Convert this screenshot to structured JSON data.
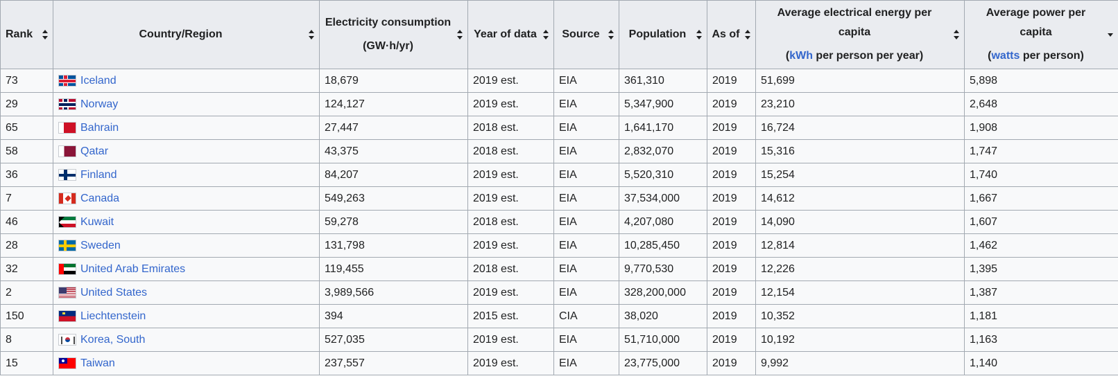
{
  "headers": {
    "rank": "Rank",
    "country": "Country/Region",
    "consumption_line1": "Electricity consumption",
    "consumption_unit": "(GW·h/yr)",
    "year": "Year of data",
    "source": "Source",
    "population": "Population",
    "as_of": "As of",
    "energy_title": "Average electrical energy per capita",
    "energy_unit_pre": "(",
    "energy_unit_link": "kWh",
    "energy_unit_post": " per person per year)",
    "power_title": "Average power per capita",
    "power_unit_pre": "(",
    "power_unit_link": "watts",
    "power_unit_post": " per person)"
  },
  "rows": [
    {
      "rank": "73",
      "country": "Iceland",
      "flag": "iceland",
      "consumption": "18,679",
      "year": "2019 est.",
      "source": "EIA",
      "population": "361,310",
      "as_of": "2019",
      "energy": "51,699",
      "power": "5,898"
    },
    {
      "rank": "29",
      "country": "Norway",
      "flag": "norway",
      "consumption": "124,127",
      "year": "2019 est.",
      "source": "EIA",
      "population": "5,347,900",
      "as_of": "2019",
      "energy": "23,210",
      "power": "2,648"
    },
    {
      "rank": "65",
      "country": "Bahrain",
      "flag": "bahrain",
      "consumption": "27,447",
      "year": "2018 est.",
      "source": "EIA",
      "population": "1,641,170",
      "as_of": "2019",
      "energy": "16,724",
      "power": "1,908"
    },
    {
      "rank": "58",
      "country": "Qatar",
      "flag": "qatar",
      "consumption": "43,375",
      "year": "2018 est.",
      "source": "EIA",
      "population": "2,832,070",
      "as_of": "2019",
      "energy": "15,316",
      "power": "1,747"
    },
    {
      "rank": "36",
      "country": "Finland",
      "flag": "finland",
      "consumption": "84,207",
      "year": "2019 est.",
      "source": "EIA",
      "population": "5,520,310",
      "as_of": "2019",
      "energy": "15,254",
      "power": "1,740"
    },
    {
      "rank": "7",
      "country": "Canada",
      "flag": "canada",
      "consumption": "549,263",
      "year": "2019 est.",
      "source": "EIA",
      "population": "37,534,000",
      "as_of": "2019",
      "energy": "14,612",
      "power": "1,667"
    },
    {
      "rank": "46",
      "country": "Kuwait",
      "flag": "kuwait",
      "consumption": "59,278",
      "year": "2018 est.",
      "source": "EIA",
      "population": "4,207,080",
      "as_of": "2019",
      "energy": "14,090",
      "power": "1,607"
    },
    {
      "rank": "28",
      "country": "Sweden",
      "flag": "sweden",
      "consumption": "131,798",
      "year": "2019 est.",
      "source": "EIA",
      "population": "10,285,450",
      "as_of": "2019",
      "energy": "12,814",
      "power": "1,462"
    },
    {
      "rank": "32",
      "country": "United Arab Emirates",
      "flag": "uae",
      "consumption": "119,455",
      "year": "2018 est.",
      "source": "EIA",
      "population": "9,770,530",
      "as_of": "2019",
      "energy": "12,226",
      "power": "1,395"
    },
    {
      "rank": "2",
      "country": "United States",
      "flag": "usa",
      "consumption": "3,989,566",
      "year": "2019 est.",
      "source": "EIA",
      "population": "328,200,000",
      "as_of": "2019",
      "energy": "12,154",
      "power": "1,387"
    },
    {
      "rank": "150",
      "country": "Liechtenstein",
      "flag": "liechtenstein",
      "consumption": "394",
      "year": "2015 est.",
      "source": "CIA",
      "population": "38,020",
      "as_of": "2019",
      "energy": "10,352",
      "power": "1,181"
    },
    {
      "rank": "8",
      "country": "Korea, South",
      "flag": "korea",
      "consumption": "527,035",
      "year": "2019 est.",
      "source": "EIA",
      "population": "51,710,000",
      "as_of": "2019",
      "energy": "10,192",
      "power": "1,163"
    },
    {
      "rank": "15",
      "country": "Taiwan",
      "flag": "taiwan",
      "consumption": "237,557",
      "year": "2019 est.",
      "source": "EIA",
      "population": "23,775,000",
      "as_of": "2019",
      "energy": "9,992",
      "power": "1,140"
    }
  ]
}
